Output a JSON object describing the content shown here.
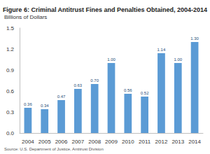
{
  "chart_data": {
    "type": "bar",
    "title": "Figure 6: Criminal Antitrust Fines and Penalties Obtained, 2004-2014",
    "ylabel": "Billions of Dollars",
    "source": "Source: U.S. Department of Justice, Antitrust Division",
    "categories": [
      "2004",
      "2005",
      "2006",
      "2007",
      "2008",
      "2009",
      "2010",
      "2011",
      "2012",
      "2013",
      "2014"
    ],
    "values": [
      0.36,
      0.34,
      0.47,
      0.63,
      0.7,
      1,
      0.56,
      0.52,
      1.14,
      1,
      1.3
    ],
    "value_labels": [
      "0.36",
      "0.34",
      "0.47",
      "0.63",
      "0.70",
      "1.00",
      "0.56",
      "0.52",
      "1.14",
      "1.00",
      "1.30"
    ],
    "data_labels": true,
    "color": "#5b9bd5",
    "ylim": [
      0,
      1.5
    ],
    "yticks": [
      {
        "value": 0,
        "label": "0.0"
      },
      0.3,
      0.6,
      0.9,
      1.2,
      1.5
    ],
    "grid": false
  }
}
